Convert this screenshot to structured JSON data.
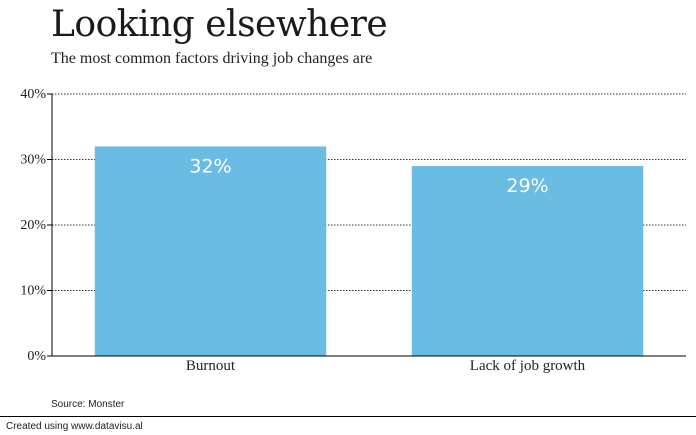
{
  "chart_data": {
    "type": "bar",
    "title": "Looking elsewhere",
    "subtitle": "The most common factors driving job changes are",
    "categories": [
      "Burnout",
      "Lack of job growth"
    ],
    "values": [
      32,
      29
    ],
    "data_labels": [
      "32%",
      "29%"
    ],
    "ylim": [
      0,
      40
    ],
    "yticks": [
      0,
      10,
      20,
      30,
      40
    ],
    "ytick_labels": [
      "0%",
      "10%",
      "20%",
      "30%",
      "40%"
    ],
    "xlabel": "",
    "ylabel": "",
    "grid": true,
    "bar_color": "#6bbce3",
    "source": "Source: Monster"
  },
  "footer": {
    "credit": "Created using www.datavisu.al"
  }
}
